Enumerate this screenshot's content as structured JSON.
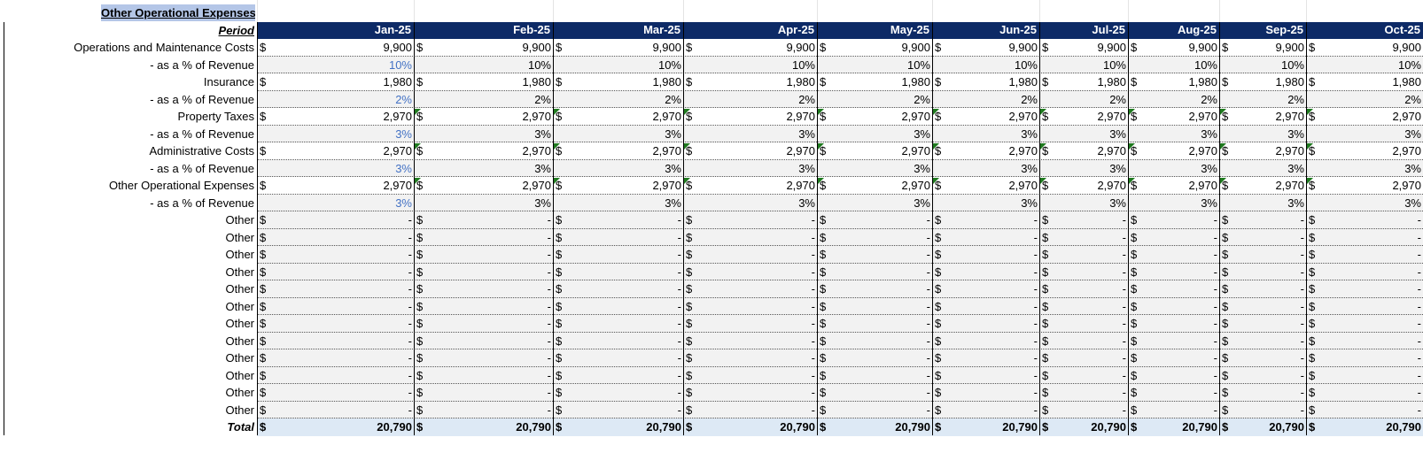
{
  "section_title": "Other Operational Expenses",
  "period_label": "Period",
  "total_label": "Total",
  "currency": "$",
  "months": [
    "Jan-25",
    "Feb-25",
    "Mar-25",
    "Apr-25",
    "May-25",
    "Jun-25",
    "Jul-25",
    "Aug-25",
    "Sep-25",
    "Oct-25"
  ],
  "rows": [
    {
      "label": "Operations and Maintenance Costs",
      "kind": "money",
      "values": [
        "9,900",
        "9,900",
        "9,900",
        "9,900",
        "9,900",
        "9,900",
        "9,900",
        "9,900",
        "9,900",
        "9,900"
      ]
    },
    {
      "label": "- as a % of Revenue",
      "kind": "pct",
      "values": [
        "10%",
        "10%",
        "10%",
        "10%",
        "10%",
        "10%",
        "10%",
        "10%",
        "10%",
        "10%"
      ]
    },
    {
      "label": "Insurance",
      "kind": "money",
      "values": [
        "1,980",
        "1,980",
        "1,980",
        "1,980",
        "1,980",
        "1,980",
        "1,980",
        "1,980",
        "1,980",
        "1,980"
      ]
    },
    {
      "label": "- as a % of Revenue",
      "kind": "pct",
      "values": [
        "2%",
        "2%",
        "2%",
        "2%",
        "2%",
        "2%",
        "2%",
        "2%",
        "2%",
        "2%"
      ]
    },
    {
      "label": "Property Taxes",
      "kind": "money",
      "flag": true,
      "values": [
        "2,970",
        "2,970",
        "2,970",
        "2,970",
        "2,970",
        "2,970",
        "2,970",
        "2,970",
        "2,970",
        "2,970"
      ]
    },
    {
      "label": "- as a % of Revenue",
      "kind": "pct",
      "values": [
        "3%",
        "3%",
        "3%",
        "3%",
        "3%",
        "3%",
        "3%",
        "3%",
        "3%",
        "3%"
      ]
    },
    {
      "label": "Administrative Costs",
      "kind": "money",
      "flag": true,
      "values": [
        "2,970",
        "2,970",
        "2,970",
        "2,970",
        "2,970",
        "2,970",
        "2,970",
        "2,970",
        "2,970",
        "2,970"
      ]
    },
    {
      "label": "- as a % of Revenue",
      "kind": "pct",
      "values": [
        "3%",
        "3%",
        "3%",
        "3%",
        "3%",
        "3%",
        "3%",
        "3%",
        "3%",
        "3%"
      ]
    },
    {
      "label": "Other Operational Expenses",
      "kind": "money",
      "flag": true,
      "values": [
        "2,970",
        "2,970",
        "2,970",
        "2,970",
        "2,970",
        "2,970",
        "2,970",
        "2,970",
        "2,970",
        "2,970"
      ]
    },
    {
      "label": "- as a % of Revenue",
      "kind": "pct",
      "values": [
        "3%",
        "3%",
        "3%",
        "3%",
        "3%",
        "3%",
        "3%",
        "3%",
        "3%",
        "3%"
      ]
    },
    {
      "label": "Other",
      "kind": "other",
      "values": [
        "-",
        "-",
        "-",
        "-",
        "-",
        "-",
        "-",
        "-",
        "-",
        "-"
      ]
    },
    {
      "label": "Other",
      "kind": "other",
      "values": [
        "-",
        "-",
        "-",
        "-",
        "-",
        "-",
        "-",
        "-",
        "-",
        "-"
      ]
    },
    {
      "label": "Other",
      "kind": "other",
      "values": [
        "-",
        "-",
        "-",
        "-",
        "-",
        "-",
        "-",
        "-",
        "-",
        "-"
      ]
    },
    {
      "label": "Other",
      "kind": "other",
      "values": [
        "-",
        "-",
        "-",
        "-",
        "-",
        "-",
        "-",
        "-",
        "-",
        "-"
      ]
    },
    {
      "label": "Other",
      "kind": "other",
      "values": [
        "-",
        "-",
        "-",
        "-",
        "-",
        "-",
        "-",
        "-",
        "-",
        "-"
      ]
    },
    {
      "label": "Other",
      "kind": "other",
      "values": [
        "-",
        "-",
        "-",
        "-",
        "-",
        "-",
        "-",
        "-",
        "-",
        "-"
      ]
    },
    {
      "label": "Other",
      "kind": "other",
      "values": [
        "-",
        "-",
        "-",
        "-",
        "-",
        "-",
        "-",
        "-",
        "-",
        "-"
      ]
    },
    {
      "label": "Other",
      "kind": "other",
      "values": [
        "-",
        "-",
        "-",
        "-",
        "-",
        "-",
        "-",
        "-",
        "-",
        "-"
      ]
    },
    {
      "label": "Other",
      "kind": "other",
      "values": [
        "-",
        "-",
        "-",
        "-",
        "-",
        "-",
        "-",
        "-",
        "-",
        "-"
      ]
    },
    {
      "label": "Other",
      "kind": "other",
      "values": [
        "-",
        "-",
        "-",
        "-",
        "-",
        "-",
        "-",
        "-",
        "-",
        "-"
      ]
    },
    {
      "label": "Other",
      "kind": "other",
      "values": [
        "-",
        "-",
        "-",
        "-",
        "-",
        "-",
        "-",
        "-",
        "-",
        "-"
      ]
    },
    {
      "label": "Other",
      "kind": "other",
      "values": [
        "-",
        "-",
        "-",
        "-",
        "-",
        "-",
        "-",
        "-",
        "-",
        "-"
      ]
    }
  ],
  "totals": [
    "20,790",
    "20,790",
    "20,790",
    "20,790",
    "20,790",
    "20,790",
    "20,790",
    "20,790",
    "20,790",
    "20,790"
  ],
  "colors": {
    "header_bg": "#0d2a66",
    "title_bg": "#b4c6e7",
    "input_blue": "#4472c4",
    "total_bg": "#dde9f5",
    "flag_green": "#1f7a1f"
  }
}
